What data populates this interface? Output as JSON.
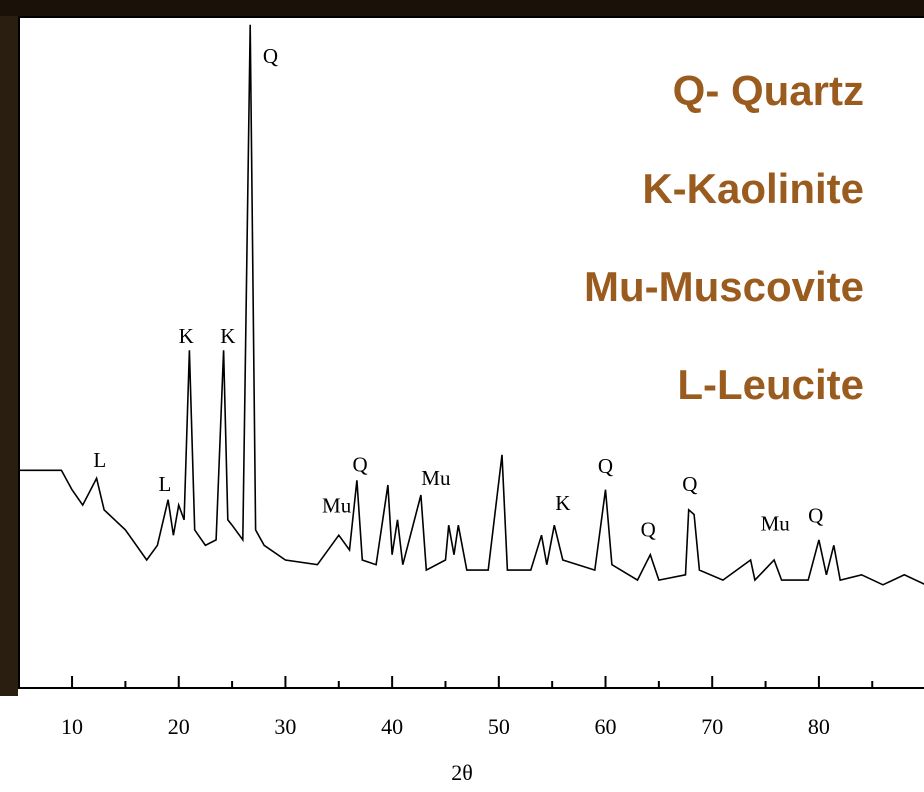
{
  "chart_data": {
    "type": "line",
    "x_label": "2θ",
    "xlim": [
      5,
      90
    ],
    "ylim": [
      0,
      100
    ],
    "xticks": [
      10,
      20,
      30,
      40,
      50,
      60,
      70,
      80
    ],
    "xminorticks": [
      15,
      25,
      35,
      45,
      55,
      65,
      75,
      85
    ],
    "series": [
      {
        "color": "#000000",
        "x": [
          5,
          9,
          10,
          11,
          12.3,
          13,
          15,
          17,
          18,
          19,
          19.5,
          20,
          20.5,
          21,
          21.5,
          22.5,
          23.5,
          24.2,
          24.6,
          25,
          26,
          26.7,
          27.2,
          28,
          30,
          33,
          35,
          36,
          36.7,
          37.2,
          38.5,
          39.6,
          40,
          40.5,
          41,
          42.7,
          43.2,
          45,
          45.3,
          45.8,
          46.2,
          47,
          49,
          50.3,
          50.8,
          53,
          54,
          54.5,
          55.2,
          56,
          59,
          60,
          60.6,
          63,
          64.2,
          65,
          67.5,
          67.8,
          68.3,
          68.8,
          71,
          73.6,
          74,
          75.8,
          76.5,
          79,
          80,
          80.7,
          81.4,
          82,
          84,
          86,
          88,
          90
        ],
        "values": [
          32.5,
          32.5,
          29.6,
          27.3,
          31.3,
          26.6,
          23.6,
          19.1,
          21.3,
          28.1,
          22.8,
          27.3,
          25.1,
          50.4,
          23.6,
          21.3,
          22.1,
          50.4,
          25.1,
          24.3,
          22.1,
          99.0,
          23.6,
          21.3,
          19.1,
          18.4,
          22.8,
          20.6,
          31.0,
          19.1,
          18.4,
          30.3,
          19.9,
          25.1,
          18.4,
          28.8,
          17.6,
          19.1,
          24.3,
          19.9,
          24.3,
          17.6,
          17.6,
          34.8,
          17.6,
          17.6,
          22.8,
          18.4,
          24.3,
          19.1,
          17.6,
          29.6,
          18.4,
          16.1,
          19.9,
          16.1,
          16.9,
          26.6,
          25.9,
          17.6,
          16.1,
          19.1,
          16.1,
          19.1,
          16.1,
          16.1,
          22.1,
          16.9,
          21.3,
          16.1,
          16.9,
          15.4,
          16.9,
          15.4
        ]
      }
    ],
    "annotations": [
      {
        "label": "L",
        "x": 12.6,
        "y": 33.7
      },
      {
        "label": "L",
        "x": 18.7,
        "y": 30.1
      },
      {
        "label": "K",
        "x": 20.7,
        "y": 52.2
      },
      {
        "label": "K",
        "x": 24.6,
        "y": 52.2
      },
      {
        "label": "Q",
        "x": 28.6,
        "y": 94
      },
      {
        "label": "Mu",
        "x": 34.8,
        "y": 26.9
      },
      {
        "label": "Q",
        "x": 37.0,
        "y": 33
      },
      {
        "label": "Mu",
        "x": 44.1,
        "y": 31
      },
      {
        "label": "K",
        "x": 56.0,
        "y": 27.3
      },
      {
        "label": "Q",
        "x": 60.0,
        "y": 32.8
      },
      {
        "label": "Q",
        "x": 64.0,
        "y": 23.3
      },
      {
        "label": "Q",
        "x": 67.9,
        "y": 30.1
      },
      {
        "label": "Mu",
        "x": 75.9,
        "y": 24.2
      },
      {
        "label": "Q",
        "x": 79.7,
        "y": 25.4
      }
    ],
    "key_text": [
      "Q- Quartz",
      "K-Kaolinite",
      "Mu-Muscovite",
      "L-Leucite"
    ]
  }
}
